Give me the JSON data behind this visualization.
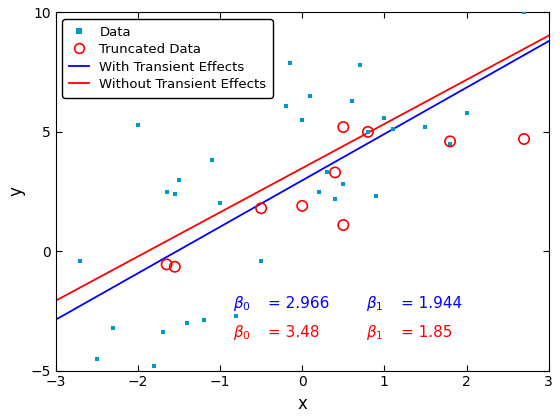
{
  "scatter_x": [
    -2.7,
    -2.5,
    -2.3,
    -2.0,
    -1.8,
    -1.7,
    -1.65,
    -1.55,
    -1.5,
    -1.4,
    -1.2,
    -1.1,
    -1.0,
    -0.8,
    -0.5,
    -0.2,
    -0.15,
    0.0,
    0.1,
    0.2,
    0.3,
    0.4,
    0.5,
    0.6,
    0.7,
    0.8,
    0.9,
    1.0,
    1.1,
    1.5,
    1.8,
    2.0,
    2.7
  ],
  "scatter_y": [
    -0.4,
    -4.5,
    -3.2,
    5.3,
    -4.8,
    -3.4,
    2.5,
    2.4,
    3.0,
    -3.0,
    -2.9,
    3.8,
    2.0,
    -2.7,
    -0.4,
    6.1,
    7.9,
    5.5,
    6.5,
    2.5,
    3.3,
    2.2,
    2.8,
    6.3,
    7.8,
    5.0,
    2.3,
    5.6,
    5.1,
    5.2,
    4.5,
    5.8,
    10.0
  ],
  "truncated_x": [
    -1.65,
    -1.55,
    0.0,
    -0.5,
    0.4,
    0.5,
    0.5,
    0.8,
    1.8,
    2.7
  ],
  "truncated_y": [
    -0.55,
    -0.65,
    1.9,
    1.8,
    3.3,
    5.2,
    1.1,
    5.0,
    4.6,
    4.7
  ],
  "beta0_blue": 2.966,
  "beta1_blue": 1.944,
  "beta0_red": 3.48,
  "beta1_red": 1.85,
  "xlim": [
    -3,
    3
  ],
  "ylim": [
    -5,
    10
  ],
  "xlabel": "x",
  "ylabel": "y",
  "scatter_color": "#0099CC",
  "truncated_edgecolor": "#FF0000",
  "line_blue": "#0000FF",
  "line_red": "#FF0000",
  "yticks": [
    -5,
    0,
    5,
    10
  ],
  "xticks": [
    -3,
    -2,
    -1,
    0,
    1,
    2,
    3
  ],
  "beta0_blue_str": "2.966",
  "beta1_blue_str": "1.944",
  "beta0_red_str": "3.48",
  "beta1_red_str": "1.85",
  "annotation_fontsize": 11,
  "legend_fontsize": 9.5
}
